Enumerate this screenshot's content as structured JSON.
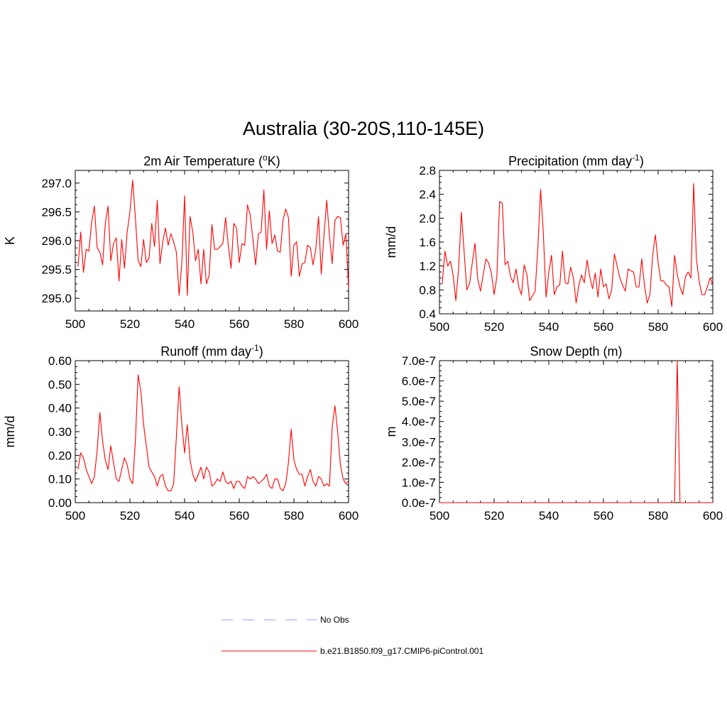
{
  "title": "Australia (30-20S,110-145E)",
  "legend": {
    "entries": [
      {
        "label": "No Obs",
        "color": "#9999ff",
        "style": "dashed"
      },
      {
        "label": "b.e21.B1850.f09_g17.CMIP6-piControl.001",
        "color": "#ff0000",
        "style": "solid"
      }
    ]
  },
  "chart_data": [
    {
      "type": "line",
      "title": "2m Air Temperature (",
      "title_sup": "o",
      "title_end": "K)",
      "ylabel": "K",
      "xlim": [
        500,
        600
      ],
      "ylim": [
        294.78,
        297.22
      ],
      "xticks": [
        500,
        520,
        540,
        560,
        580,
        600
      ],
      "yticks": [
        295.0,
        295.5,
        296.0,
        296.5,
        297.0
      ],
      "ytick_labels": [
        "295.0",
        "295.5",
        "296.0",
        "296.5",
        "297.0"
      ],
      "series": [
        {
          "color": "#ff0000",
          "x_start": 501,
          "values": [
            295.55,
            296.15,
            295.45,
            295.85,
            295.82,
            296.32,
            296.6,
            295.88,
            295.8,
            295.58,
            296.3,
            296.6,
            295.65,
            295.95,
            296.05,
            295.3,
            296.02,
            295.52,
            296.15,
            296.5,
            297.05,
            296.4,
            295.65,
            295.55,
            296.02,
            295.62,
            295.7,
            296.3,
            295.9,
            296.7,
            295.6,
            295.98,
            296.22,
            295.92,
            296.12,
            295.98,
            295.8,
            295.05,
            295.62,
            296.78,
            295.05,
            296.42,
            296.15,
            295.65,
            295.85,
            295.25,
            295.85,
            295.25,
            295.4,
            296.28,
            295.85,
            295.85,
            295.9,
            295.95,
            296.4,
            295.92,
            295.52,
            296.3,
            296.22,
            295.62,
            295.95,
            295.92,
            296.62,
            296.45,
            296.02,
            295.58,
            296.12,
            296.15,
            296.88,
            295.85,
            296.52,
            295.95,
            296.1,
            295.82,
            295.8,
            296.35,
            296.55,
            296.4,
            295.38,
            295.92,
            295.98,
            295.38,
            295.6,
            295.62,
            295.92,
            295.88,
            295.58,
            295.85,
            296.42,
            295.42,
            296.1,
            296.7,
            296.08,
            295.6,
            296.35,
            296.42,
            296.4,
            295.92,
            296.12,
            295.18
          ]
        }
      ]
    },
    {
      "type": "line",
      "title": "Precipitation (mm day",
      "title_sup": "-1",
      "title_end": ")",
      "ylabel": "mm/d",
      "xlim": [
        500,
        600
      ],
      "ylim": [
        0.4,
        2.8
      ],
      "xticks": [
        500,
        520,
        540,
        560,
        580,
        600
      ],
      "yticks": [
        0.4,
        0.8,
        1.2,
        1.6,
        2.0,
        2.4,
        2.8
      ],
      "ytick_labels": [
        "0.4",
        "0.8",
        "1.2",
        "1.6",
        "2.0",
        "2.4",
        "2.8"
      ],
      "series": [
        {
          "color": "#ff0000",
          "x_start": 501,
          "values": [
            0.9,
            1.45,
            1.2,
            1.28,
            1.05,
            0.62,
            1.15,
            2.1,
            1.45,
            0.8,
            0.9,
            1.25,
            1.58,
            0.98,
            0.78,
            1.05,
            1.32,
            1.25,
            1.08,
            0.72,
            1.02,
            2.28,
            2.25,
            1.22,
            1.28,
            1.02,
            0.92,
            1.15,
            0.85,
            0.72,
            1.22,
            1.05,
            0.62,
            0.7,
            0.78,
            1.52,
            2.48,
            1.75,
            0.68,
            1.1,
            1.38,
            0.72,
            0.85,
            0.88,
            1.45,
            0.92,
            0.9,
            1.18,
            1.0,
            0.58,
            0.88,
            1.05,
            0.92,
            1.3,
            1.02,
            0.82,
            1.08,
            0.68,
            1.15,
            0.85,
            0.9,
            0.65,
            0.8,
            1.4,
            1.2,
            1.0,
            0.88,
            0.78,
            1.15,
            1.12,
            1.1,
            0.85,
            0.85,
            1.32,
            0.88,
            0.58,
            0.72,
            1.38,
            1.72,
            1.25,
            0.95,
            0.95,
            0.88,
            0.85,
            0.52,
            1.38,
            1.05,
            0.85,
            0.72,
            1.02,
            1.1,
            1.0,
            2.58,
            1.32,
            0.95,
            0.72,
            0.72,
            0.85,
            1.0,
            0.9
          ]
        }
      ]
    },
    {
      "type": "line",
      "title": "Runoff (mm day",
      "title_sup": "-1",
      "title_end": ")",
      "ylabel": "mm/d",
      "xlim": [
        500,
        600
      ],
      "ylim": [
        0.0,
        0.6
      ],
      "xticks": [
        500,
        520,
        540,
        560,
        580,
        600
      ],
      "yticks": [
        0.0,
        0.1,
        0.2,
        0.3,
        0.4,
        0.5,
        0.6
      ],
      "ytick_labels": [
        "0.00",
        "0.10",
        "0.20",
        "0.30",
        "0.40",
        "0.50",
        "0.60"
      ],
      "series": [
        {
          "color": "#ff0000",
          "x_start": 501,
          "values": [
            0.14,
            0.21,
            0.19,
            0.14,
            0.11,
            0.08,
            0.11,
            0.22,
            0.38,
            0.26,
            0.18,
            0.14,
            0.24,
            0.17,
            0.1,
            0.09,
            0.14,
            0.19,
            0.16,
            0.1,
            0.08,
            0.26,
            0.54,
            0.47,
            0.33,
            0.24,
            0.15,
            0.13,
            0.11,
            0.07,
            0.11,
            0.12,
            0.07,
            0.05,
            0.05,
            0.08,
            0.28,
            0.49,
            0.33,
            0.21,
            0.33,
            0.18,
            0.12,
            0.09,
            0.12,
            0.15,
            0.1,
            0.15,
            0.13,
            0.07,
            0.08,
            0.1,
            0.09,
            0.13,
            0.09,
            0.08,
            0.09,
            0.06,
            0.09,
            0.09,
            0.07,
            0.06,
            0.11,
            0.1,
            0.11,
            0.1,
            0.08,
            0.09,
            0.1,
            0.12,
            0.07,
            0.06,
            0.1,
            0.1,
            0.06,
            0.05,
            0.08,
            0.17,
            0.31,
            0.18,
            0.14,
            0.12,
            0.12,
            0.07,
            0.11,
            0.14,
            0.09,
            0.07,
            0.11,
            0.1,
            0.07,
            0.08,
            0.07,
            0.32,
            0.41,
            0.3,
            0.16,
            0.1,
            0.08,
            0.09
          ]
        }
      ]
    },
    {
      "type": "line",
      "title": "Snow Depth (m)",
      "title_sup": "",
      "title_end": "",
      "ylabel": "m",
      "xlim": [
        500,
        600
      ],
      "ylim": [
        0.0,
        7e-07
      ],
      "xticks": [
        500,
        520,
        540,
        560,
        580,
        600
      ],
      "yticks": [
        0.0,
        1e-07,
        2e-07,
        3e-07,
        4e-07,
        5e-07,
        6e-07,
        7e-07
      ],
      "ytick_labels": [
        "0.0e-7",
        "1.0e-7",
        "2.0e-7",
        "3.0e-7",
        "4.0e-7",
        "5.0e-7",
        "6.0e-7",
        "7.0e-7"
      ],
      "series": [
        {
          "color": "#ff0000",
          "x": [
            500,
            586,
            587,
            588,
            600
          ],
          "values": [
            0.0,
            0.0,
            7e-07,
            0.0,
            0.0
          ]
        }
      ]
    }
  ]
}
